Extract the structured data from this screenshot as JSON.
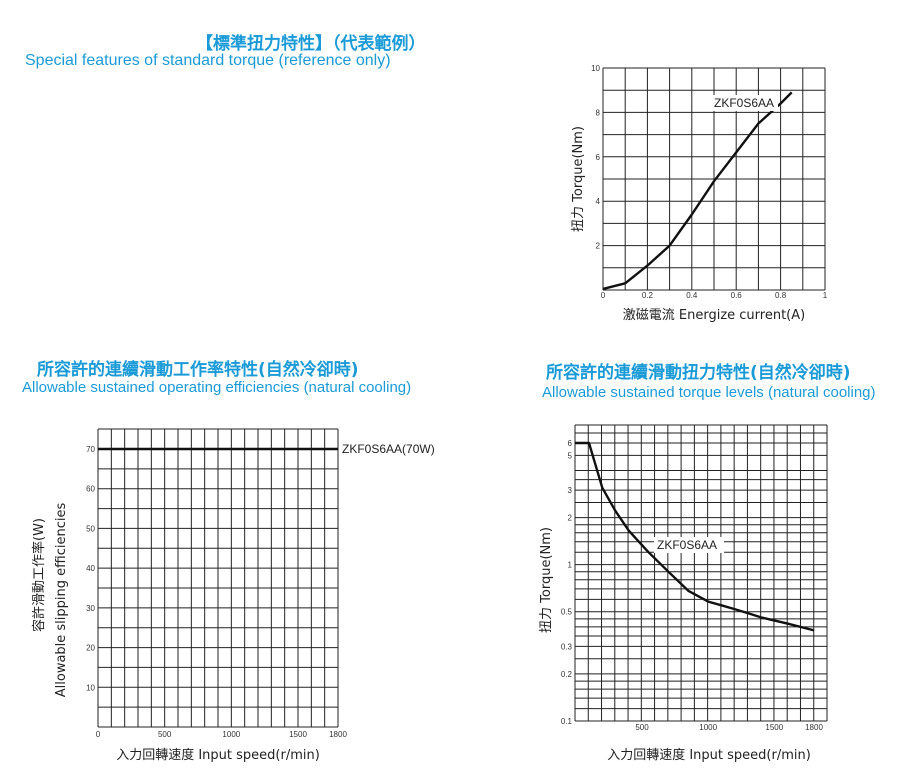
{
  "sections": {
    "torque": {
      "title_cn": "【標準扭力特性】（代表範例）",
      "title_en": "Special features of standard torque  (reference only)"
    },
    "efficiency": {
      "title_cn": "所容許的連續滑動工作率特性(自然冷卻時)",
      "title_en": "Allowable sustained operating efficiencies (natural cooling)"
    },
    "torque_levels": {
      "title_cn": "所容許的連續滑動扭力特性(自然冷卻時)",
      "title_en": "Allowable sustained torque levels  (natural cooling)"
    }
  },
  "chart_data": [
    {
      "type": "line",
      "xlabel": "激磁電流 Energize current(A)",
      "ylabel": "扭力 Torque(Nm)",
      "xlim": [
        0,
        1
      ],
      "ylim": [
        0,
        10
      ],
      "xticks": [
        "0",
        "0.2",
        "0.4",
        "0.6",
        "0.8",
        "1"
      ],
      "yticks": [
        "2",
        "4",
        "6",
        "8",
        "10"
      ],
      "grid": true,
      "series": [
        {
          "name": "ZKF0S6AA",
          "x": [
            0,
            0.1,
            0.2,
            0.3,
            0.4,
            0.5,
            0.6,
            0.7,
            0.8,
            0.85
          ],
          "y": [
            0.05,
            0.3,
            1.1,
            2.0,
            3.4,
            4.9,
            6.2,
            7.5,
            8.4,
            8.9
          ]
        }
      ]
    },
    {
      "type": "line",
      "xlabel": "入力回轉速度 Input speed(r/min)",
      "ylabel": "容許滑動工作率(W) Allowable slipping efficiencies",
      "xlim": [
        0,
        1800
      ],
      "ylim": [
        0,
        70
      ],
      "xticks": [
        "0",
        "500",
        "1000",
        "1500",
        "1800"
      ],
      "yticks": [
        "10",
        "20",
        "30",
        "40",
        "50",
        "60",
        "70"
      ],
      "grid": true,
      "series": [
        {
          "name": "ZKF0S6AA(70W)",
          "x": [
            0,
            1800
          ],
          "y": [
            70,
            70
          ]
        }
      ]
    },
    {
      "type": "line",
      "xlabel": "入力回轉速度 Input speed(r/min)",
      "ylabel": "扭力 Torque(Nm)",
      "xlim": [
        0,
        1900
      ],
      "ylim": [
        0.1,
        6
      ],
      "yscale": "log",
      "xticks": [
        "500",
        "1000",
        "1500",
        "1800"
      ],
      "yticks": [
        "0.1",
        "0.2",
        "0.3",
        "0.5",
        "1",
        "2",
        "3",
        "5",
        "6"
      ],
      "grid": true,
      "series": [
        {
          "name": "ZKF0S6AA",
          "x": [
            0,
            120,
            200,
            300,
            400,
            550,
            700,
            850,
            1000,
            1100,
            1200,
            1300,
            1400,
            1600,
            1800
          ],
          "y": [
            6,
            6,
            3.1,
            2.2,
            1.65,
            1.2,
            0.9,
            0.68,
            0.58,
            0.55,
            0.52,
            0.49,
            0.46,
            0.42,
            0.38
          ]
        }
      ]
    }
  ]
}
